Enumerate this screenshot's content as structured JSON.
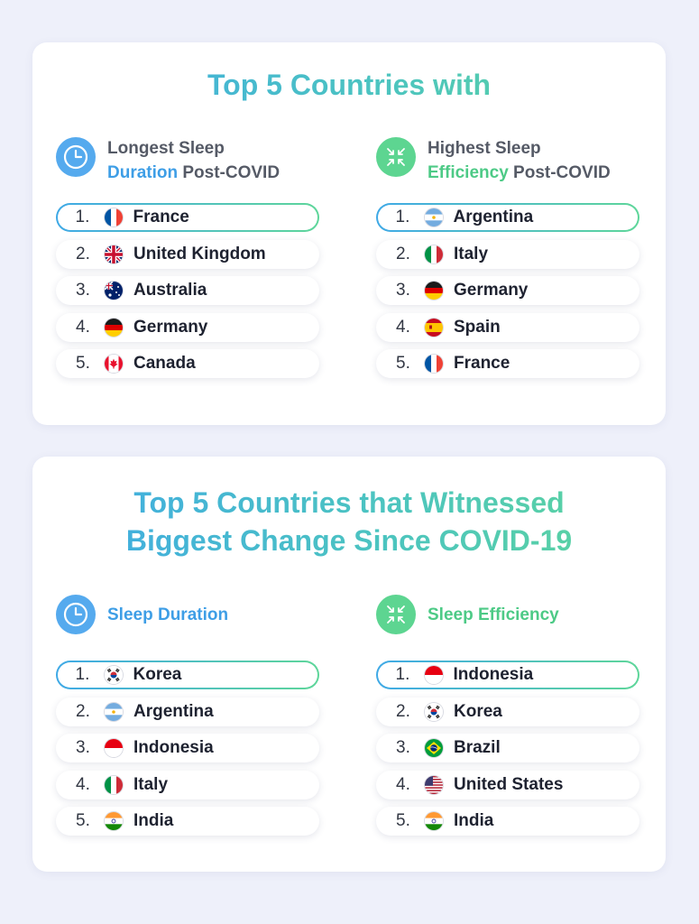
{
  "section1": {
    "title": "Top 5 Countries with",
    "left": {
      "icon": "clock-icon",
      "heading_line1": "Longest Sleep",
      "heading_highlight": "Duration",
      "heading_rest": " Post-COVID",
      "items": [
        {
          "rank": "1.",
          "country": "France",
          "flag": "france"
        },
        {
          "rank": "2.",
          "country": "United Kingdom",
          "flag": "uk"
        },
        {
          "rank": "3.",
          "country": "Australia",
          "flag": "australia"
        },
        {
          "rank": "4.",
          "country": "Germany",
          "flag": "germany"
        },
        {
          "rank": "5.",
          "country": "Canada",
          "flag": "canada"
        }
      ]
    },
    "right": {
      "icon": "compress-arrows-icon",
      "heading_line1": "Highest Sleep",
      "heading_highlight": "Efficiency",
      "heading_rest": " Post-COVID",
      "items": [
        {
          "rank": "1.",
          "country": "Argentina",
          "flag": "argentina"
        },
        {
          "rank": "2.",
          "country": "Italy",
          "flag": "italy"
        },
        {
          "rank": "3.",
          "country": "Germany",
          "flag": "germany"
        },
        {
          "rank": "4.",
          "country": "Spain",
          "flag": "spain"
        },
        {
          "rank": "5.",
          "country": "France",
          "flag": "france"
        }
      ]
    }
  },
  "section2": {
    "title_line1": "Top 5 Countries that Witnessed",
    "title_line2": "Biggest Change Since COVID-19",
    "left": {
      "icon": "clock-icon",
      "heading": "Sleep Duration",
      "items": [
        {
          "rank": "1.",
          "country": "Korea",
          "flag": "korea"
        },
        {
          "rank": "2.",
          "country": "Argentina",
          "flag": "argentina"
        },
        {
          "rank": "3.",
          "country": "Indonesia",
          "flag": "indonesia"
        },
        {
          "rank": "4.",
          "country": "Italy",
          "flag": "italy"
        },
        {
          "rank": "5.",
          "country": "India",
          "flag": "india"
        }
      ]
    },
    "right": {
      "icon": "compress-arrows-icon",
      "heading": "Sleep Efficiency",
      "items": [
        {
          "rank": "1.",
          "country": "Indonesia",
          "flag": "indonesia"
        },
        {
          "rank": "2.",
          "country": "Korea",
          "flag": "korea"
        },
        {
          "rank": "3.",
          "country": "Brazil",
          "flag": "brazil"
        },
        {
          "rank": "4.",
          "country": "United States",
          "flag": "usa"
        },
        {
          "rank": "5.",
          "country": "India",
          "flag": "india"
        }
      ]
    }
  },
  "colors": {
    "background": "#eef0fa",
    "accent_blue": "#3e9ee6",
    "accent_green": "#4dca86",
    "icon_blue": "#55aaee",
    "icon_green": "#5dd591",
    "heading_gray": "#555a66",
    "text_dark": "#1e2230"
  }
}
